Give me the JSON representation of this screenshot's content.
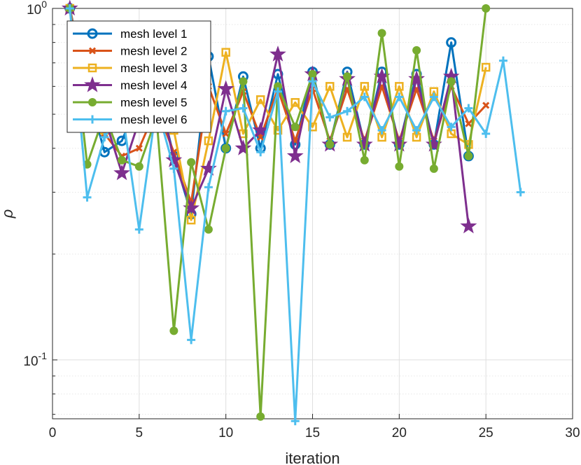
{
  "chart_data": {
    "type": "line",
    "title": "",
    "xlabel": "iteration",
    "ylabel": "ρ",
    "xlim": [
      0,
      30
    ],
    "ylim": [
      0.068,
      1.0
    ],
    "yscale": "log",
    "grid": true,
    "legend_position": "top-left",
    "xticks": [
      0,
      5,
      10,
      15,
      20,
      25,
      30
    ],
    "xtick_labels": [
      "0",
      "5",
      "10",
      "15",
      "20",
      "25",
      "30"
    ],
    "yticks": [
      {
        "value": 0.1,
        "base": "10",
        "exponent": "-1"
      },
      {
        "value": 1.0,
        "base": "10",
        "exponent": "0"
      }
    ],
    "series": [
      {
        "name": "mesh level 1",
        "color": "#0072BD",
        "marker": "circle",
        "x": [
          1,
          2,
          3,
          4,
          5,
          6,
          7,
          8,
          9,
          10,
          11,
          12,
          13,
          14,
          15,
          16,
          17,
          18,
          19,
          20,
          21,
          22,
          23,
          24
        ],
        "y": [
          1.0,
          0.6,
          0.39,
          0.42,
          0.55,
          0.6,
          0.38,
          0.26,
          0.73,
          0.4,
          0.64,
          0.4,
          0.65,
          0.41,
          0.66,
          0.41,
          0.66,
          0.41,
          0.66,
          0.41,
          0.65,
          0.41,
          0.8,
          0.38
        ]
      },
      {
        "name": "mesh level 2",
        "color": "#D95319",
        "marker": "x",
        "x": [
          1,
          2,
          3,
          4,
          5,
          6,
          7,
          8,
          9,
          10,
          11,
          12,
          13,
          14,
          15,
          16,
          17,
          18,
          19,
          20,
          21,
          22,
          23,
          24,
          25
        ],
        "y": [
          1.0,
          0.57,
          0.44,
          0.38,
          0.4,
          0.52,
          0.39,
          0.28,
          0.6,
          0.44,
          0.58,
          0.43,
          0.59,
          0.42,
          0.59,
          0.42,
          0.59,
          0.42,
          0.6,
          0.42,
          0.59,
          0.42,
          0.6,
          0.47,
          0.53
        ]
      },
      {
        "name": "mesh level 3",
        "color": "#EDB120",
        "marker": "square",
        "x": [
          1,
          2,
          3,
          4,
          5,
          6,
          7,
          8,
          9,
          10,
          11,
          12,
          13,
          14,
          15,
          16,
          17,
          18,
          19,
          20,
          21,
          22,
          23,
          24,
          25
        ],
        "y": [
          1.0,
          0.55,
          0.45,
          0.48,
          0.49,
          0.54,
          0.45,
          0.25,
          0.42,
          0.75,
          0.44,
          0.55,
          0.45,
          0.54,
          0.46,
          0.6,
          0.43,
          0.6,
          0.43,
          0.6,
          0.43,
          0.58,
          0.44,
          0.41,
          0.68
        ]
      },
      {
        "name": "mesh level 4",
        "color": "#7E2F8E",
        "marker": "star",
        "x": [
          1,
          2,
          3,
          4,
          5,
          6,
          7,
          8,
          9,
          10,
          11,
          12,
          13,
          14,
          15,
          16,
          17,
          18,
          19,
          20,
          21,
          22,
          23,
          24
        ],
        "y": [
          1.0,
          0.47,
          0.49,
          0.34,
          0.48,
          0.62,
          0.37,
          0.27,
          0.35,
          0.59,
          0.4,
          0.45,
          0.74,
          0.38,
          0.65,
          0.41,
          0.63,
          0.41,
          0.64,
          0.41,
          0.63,
          0.41,
          0.64,
          0.24
        ]
      },
      {
        "name": "mesh level 5",
        "color": "#77AC30",
        "marker": "dot",
        "x": [
          1,
          2,
          3,
          4,
          5,
          6,
          7,
          8,
          9,
          10,
          11,
          12,
          13,
          14,
          15,
          16,
          17,
          18,
          19,
          20,
          21,
          22,
          23,
          24,
          25
        ],
        "y": [
          1.0,
          0.36,
          0.5,
          0.37,
          0.355,
          0.49,
          0.121,
          0.365,
          0.235,
          0.4,
          0.62,
          0.069,
          0.6,
          0.46,
          0.65,
          0.41,
          0.64,
          0.37,
          0.85,
          0.355,
          0.76,
          0.35,
          0.62,
          0.38,
          1.0
        ]
      },
      {
        "name": "mesh level 6",
        "color": "#4DBEEE",
        "marker": "plus",
        "x": [
          1,
          2,
          3,
          4,
          5,
          6,
          7,
          8,
          9,
          10,
          11,
          12,
          13,
          14,
          15,
          16,
          17,
          18,
          19,
          20,
          21,
          22,
          23,
          24,
          25,
          26,
          27
        ],
        "y": [
          1.0,
          0.29,
          0.43,
          0.52,
          0.235,
          0.53,
          0.35,
          0.114,
          0.31,
          0.51,
          0.52,
          0.39,
          0.58,
          0.067,
          0.62,
          0.49,
          0.51,
          0.56,
          0.45,
          0.56,
          0.45,
          0.56,
          0.46,
          0.52,
          0.44,
          0.71,
          0.3
        ]
      }
    ]
  }
}
